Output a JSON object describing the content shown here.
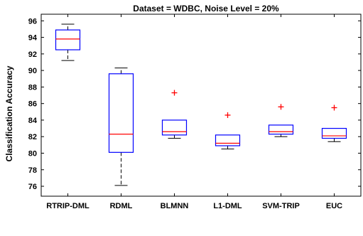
{
  "chart_data": {
    "type": "boxplot",
    "title": "Dataset = WDBC, Noise Level = 20%",
    "xlabel": "",
    "ylabel": "Classification Accuracy",
    "ylim": [
      74.8,
      96.8
    ],
    "yticks": [
      76,
      78,
      80,
      82,
      84,
      86,
      88,
      90,
      92,
      94,
      96
    ],
    "grid": false,
    "colors": {
      "box": "#0000ff",
      "median": "#ff0000",
      "whisker": "#000000",
      "outlier": "#ff0000",
      "axis": "#000000"
    },
    "categories": [
      "RTRIP-DML",
      "RDML",
      "BLMNN",
      "L1-DML",
      "SVM-TRIP",
      "EUC"
    ],
    "boxes": [
      {
        "category": "RTRIP-DML",
        "whisker_low": 91.2,
        "q1": 92.5,
        "median": 93.8,
        "q3": 94.9,
        "whisker_high": 95.6,
        "outliers": []
      },
      {
        "category": "RDML",
        "whisker_low": 76.1,
        "q1": 80.1,
        "median": 82.3,
        "q3": 89.6,
        "whisker_high": 90.3,
        "outliers": []
      },
      {
        "category": "BLMNN",
        "whisker_low": 81.8,
        "q1": 82.2,
        "median": 82.6,
        "q3": 84.0,
        "whisker_high": 84.0,
        "outliers": [
          87.3
        ]
      },
      {
        "category": "L1-DML",
        "whisker_low": 80.5,
        "q1": 80.9,
        "median": 81.2,
        "q3": 82.2,
        "whisker_high": 82.2,
        "outliers": [
          84.6
        ]
      },
      {
        "category": "SVM-TRIP",
        "whisker_low": 82.0,
        "q1": 82.3,
        "median": 82.6,
        "q3": 83.4,
        "whisker_high": 83.4,
        "outliers": [
          85.6
        ]
      },
      {
        "category": "EUC",
        "whisker_low": 81.4,
        "q1": 81.8,
        "median": 82.1,
        "q3": 83.0,
        "whisker_high": 83.0,
        "outliers": [
          85.5
        ]
      }
    ]
  }
}
